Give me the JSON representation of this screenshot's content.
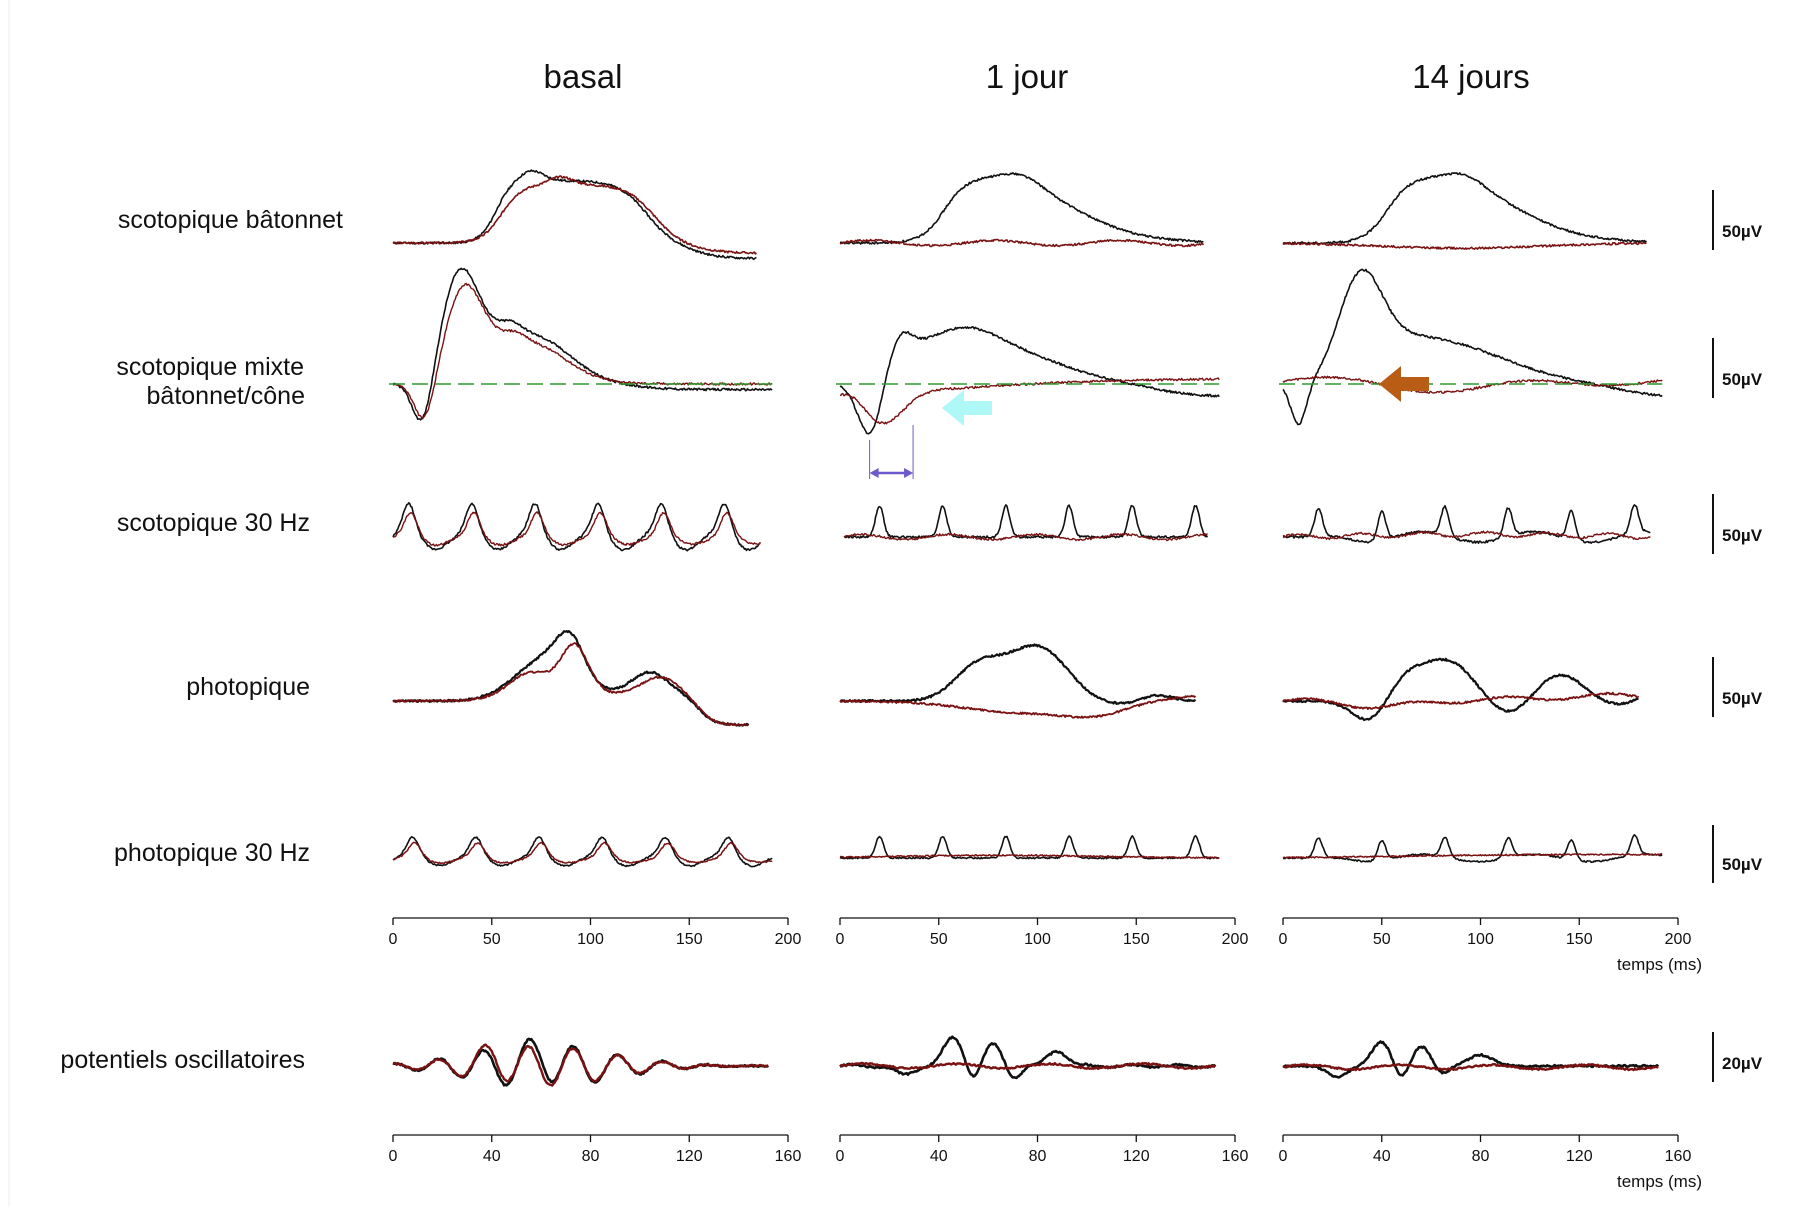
{
  "chart_data": {
    "type": "line",
    "title": "",
    "columns": [
      "basal",
      "1 jour",
      "14 jours"
    ],
    "rows": [
      {
        "label": [
          "scotopique bâtonnet"
        ],
        "scale": "50µV",
        "kind": "rod"
      },
      {
        "label": [
          "scotopique mixte",
          "bâtonnet/cône"
        ],
        "scale": "50µV",
        "kind": "mixed",
        "baseline": "dashed"
      },
      {
        "label": [
          "scotopique 30 Hz"
        ],
        "scale": "50µV",
        "kind": "flicker"
      },
      {
        "label": [
          "photopique"
        ],
        "scale": "50µV",
        "kind": "photopic"
      },
      {
        "label": [
          "photopique 30 Hz"
        ],
        "scale": "50µV",
        "kind": "flicker"
      },
      {
        "label": [
          "potentiels oscillatoires"
        ],
        "scale": "20µV",
        "kind": "op"
      }
    ],
    "axes": [
      {
        "ticks": [
          0,
          50,
          100,
          150,
          200
        ],
        "xlim": [
          0,
          200
        ],
        "xlabel": "temps (ms)"
      },
      {
        "ticks": [
          0,
          40,
          80,
          120,
          160
        ],
        "xlim": [
          0,
          160
        ],
        "xlabel": "temps (ms)"
      }
    ],
    "series": [
      {
        "color": "#111111"
      },
      {
        "color": "#7a1212"
      }
    ],
    "annotations": [
      {
        "type": "arrow",
        "column": "1 jour",
        "row": "scotopique mixte",
        "color": "#aef8f8"
      },
      {
        "type": "arrow",
        "column": "14 jours",
        "row": "scotopique mixte",
        "color": "#b85c16"
      },
      {
        "type": "interval",
        "column": "1 jour",
        "row": "scotopique mixte",
        "x": [
          15,
          37
        ],
        "color": "#6a5acd"
      }
    ],
    "baseline_color": "#2e9c2e"
  }
}
